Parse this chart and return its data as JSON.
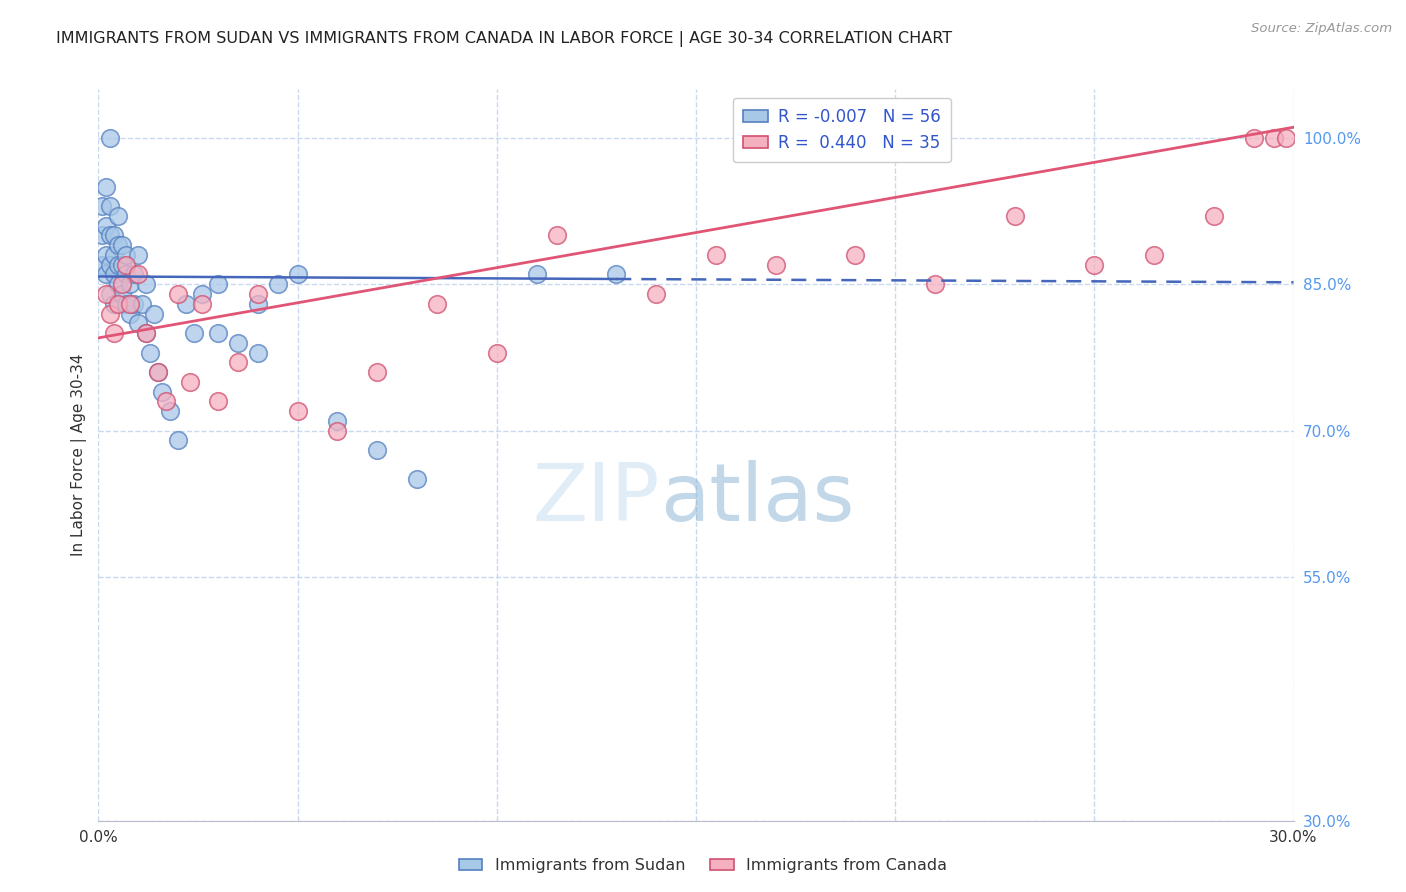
{
  "title": "IMMIGRANTS FROM SUDAN VS IMMIGRANTS FROM CANADA IN LABOR FORCE | AGE 30-34 CORRELATION CHART",
  "source": "Source: ZipAtlas.com",
  "ylabel": "In Labor Force | Age 30-34",
  "xlim": [
    0.0,
    0.3
  ],
  "ylim": [
    0.3,
    1.05
  ],
  "yticks": [
    0.3,
    0.55,
    0.7,
    0.85,
    1.0
  ],
  "ytick_labels": [
    "30.0%",
    "55.0%",
    "70.0%",
    "85.0%",
    "100.0%"
  ],
  "xticks": [
    0.0,
    0.05,
    0.1,
    0.15,
    0.2,
    0.25,
    0.3
  ],
  "xtick_labels": [
    "0.0%",
    "",
    "",
    "",
    "",
    "",
    "30.0%"
  ],
  "sudan_color": "#a8c8e8",
  "canada_color": "#f5b0c0",
  "sudan_edge": "#5580c0",
  "canada_edge": "#d05070",
  "trendline_sudan_color": "#4466bb",
  "trendline_canada_color": "#e05575",
  "legend_R_sudan": "-0.007",
  "legend_N_sudan": "56",
  "legend_R_canada": "0.440",
  "legend_N_canada": "35",
  "watermark_zip": "ZIP",
  "watermark_atlas": "atlas",
  "sudan_x": [
    0.001,
    0.001,
    0.001,
    0.002,
    0.002,
    0.002,
    0.002,
    0.003,
    0.003,
    0.003,
    0.003,
    0.003,
    0.004,
    0.004,
    0.004,
    0.004,
    0.005,
    0.005,
    0.005,
    0.005,
    0.006,
    0.006,
    0.006,
    0.007,
    0.007,
    0.007,
    0.008,
    0.008,
    0.009,
    0.009,
    0.01,
    0.01,
    0.011,
    0.012,
    0.012,
    0.013,
    0.014,
    0.015,
    0.016,
    0.018,
    0.02,
    0.022,
    0.024,
    0.026,
    0.03,
    0.03,
    0.035,
    0.04,
    0.04,
    0.045,
    0.05,
    0.06,
    0.07,
    0.08,
    0.11,
    0.13
  ],
  "sudan_y": [
    0.87,
    0.9,
    0.93,
    0.86,
    0.88,
    0.91,
    0.95,
    0.84,
    0.87,
    0.9,
    0.93,
    1.0,
    0.83,
    0.86,
    0.88,
    0.9,
    0.85,
    0.87,
    0.89,
    0.92,
    0.84,
    0.87,
    0.89,
    0.83,
    0.86,
    0.88,
    0.82,
    0.85,
    0.83,
    0.86,
    0.81,
    0.88,
    0.83,
    0.8,
    0.85,
    0.78,
    0.82,
    0.76,
    0.74,
    0.72,
    0.69,
    0.83,
    0.8,
    0.84,
    0.8,
    0.85,
    0.79,
    0.83,
    0.78,
    0.85,
    0.86,
    0.71,
    0.68,
    0.65,
    0.86,
    0.86
  ],
  "canada_x": [
    0.002,
    0.003,
    0.004,
    0.005,
    0.006,
    0.007,
    0.008,
    0.01,
    0.012,
    0.015,
    0.017,
    0.02,
    0.023,
    0.026,
    0.03,
    0.035,
    0.04,
    0.05,
    0.06,
    0.07,
    0.085,
    0.1,
    0.115,
    0.14,
    0.155,
    0.17,
    0.19,
    0.21,
    0.23,
    0.25,
    0.265,
    0.28,
    0.29,
    0.295,
    0.298
  ],
  "canada_y": [
    0.84,
    0.82,
    0.8,
    0.83,
    0.85,
    0.87,
    0.83,
    0.86,
    0.8,
    0.76,
    0.73,
    0.84,
    0.75,
    0.83,
    0.73,
    0.77,
    0.84,
    0.72,
    0.7,
    0.76,
    0.83,
    0.78,
    0.9,
    0.84,
    0.88,
    0.87,
    0.88,
    0.85,
    0.92,
    0.87,
    0.88,
    0.92,
    1.0,
    1.0,
    1.0
  ],
  "grid_color": "#c8d8ee",
  "label_color": "#5599ee",
  "background_color": "#ffffff",
  "trendline_sudan_slope": -0.02,
  "trendline_sudan_intercept": 0.858,
  "trendline_canada_slope": 0.72,
  "trendline_canada_intercept": 0.795
}
